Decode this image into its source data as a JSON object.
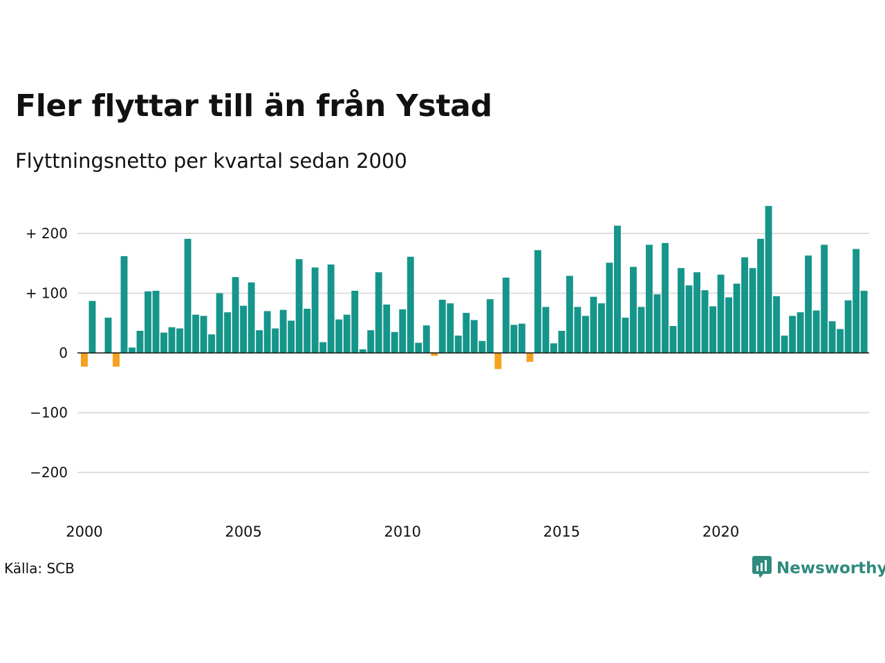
{
  "title": "Fler flyttar till än från Ystad",
  "subtitle": "Flyttningsnetto per kvartal sedan 2000",
  "source": "Källa: SCB",
  "brand": {
    "name": "Newsworthy",
    "icon": "newsworthy-logo-icon",
    "color": "#2e8b7e"
  },
  "colors": {
    "positive": "#16958a",
    "negative": "#f5a01e",
    "grid": "#dddddd",
    "zero": "#111111"
  },
  "chart_data": {
    "type": "bar",
    "title": "Fler flyttar till än från Ystad",
    "subtitle": "Flyttningsnetto per kvartal sedan 2000",
    "xlabel": "",
    "ylabel": "",
    "x_ticks": [
      "2000",
      "2005",
      "2010",
      "2015",
      "2020"
    ],
    "y_ticks": [
      {
        "value": 200,
        "label": "+ 200"
      },
      {
        "value": 100,
        "label": "+ 100"
      },
      {
        "value": 0,
        "label": "0"
      },
      {
        "value": -100,
        "label": "−100"
      },
      {
        "value": -200,
        "label": "−200"
      }
    ],
    "ylim": [
      -250,
      250
    ],
    "xlim": [
      2000,
      2024.75
    ],
    "grid": true,
    "series": [
      {
        "values": [
          -23,
          87,
          0,
          59,
          -23,
          162,
          9,
          37,
          103,
          104,
          34,
          43,
          41,
          191,
          64,
          62,
          31,
          100,
          68,
          127,
          79,
          118,
          38,
          70,
          41,
          72,
          54,
          157,
          74,
          143,
          18,
          148,
          56,
          64,
          104,
          6,
          38,
          135,
          81,
          35,
          73,
          161,
          17,
          46,
          -5,
          89,
          83,
          29,
          67,
          55,
          20,
          90,
          -27,
          126,
          47,
          49,
          -15,
          172,
          77,
          16,
          37,
          129,
          77,
          62,
          94,
          83,
          151,
          213,
          59,
          144,
          77,
          181,
          98,
          184,
          45,
          142,
          113,
          135,
          105,
          78,
          131,
          93,
          116,
          160,
          142,
          191,
          246,
          95,
          29,
          62,
          68,
          163,
          71,
          181,
          53,
          40,
          88,
          174,
          104
        ]
      }
    ]
  }
}
